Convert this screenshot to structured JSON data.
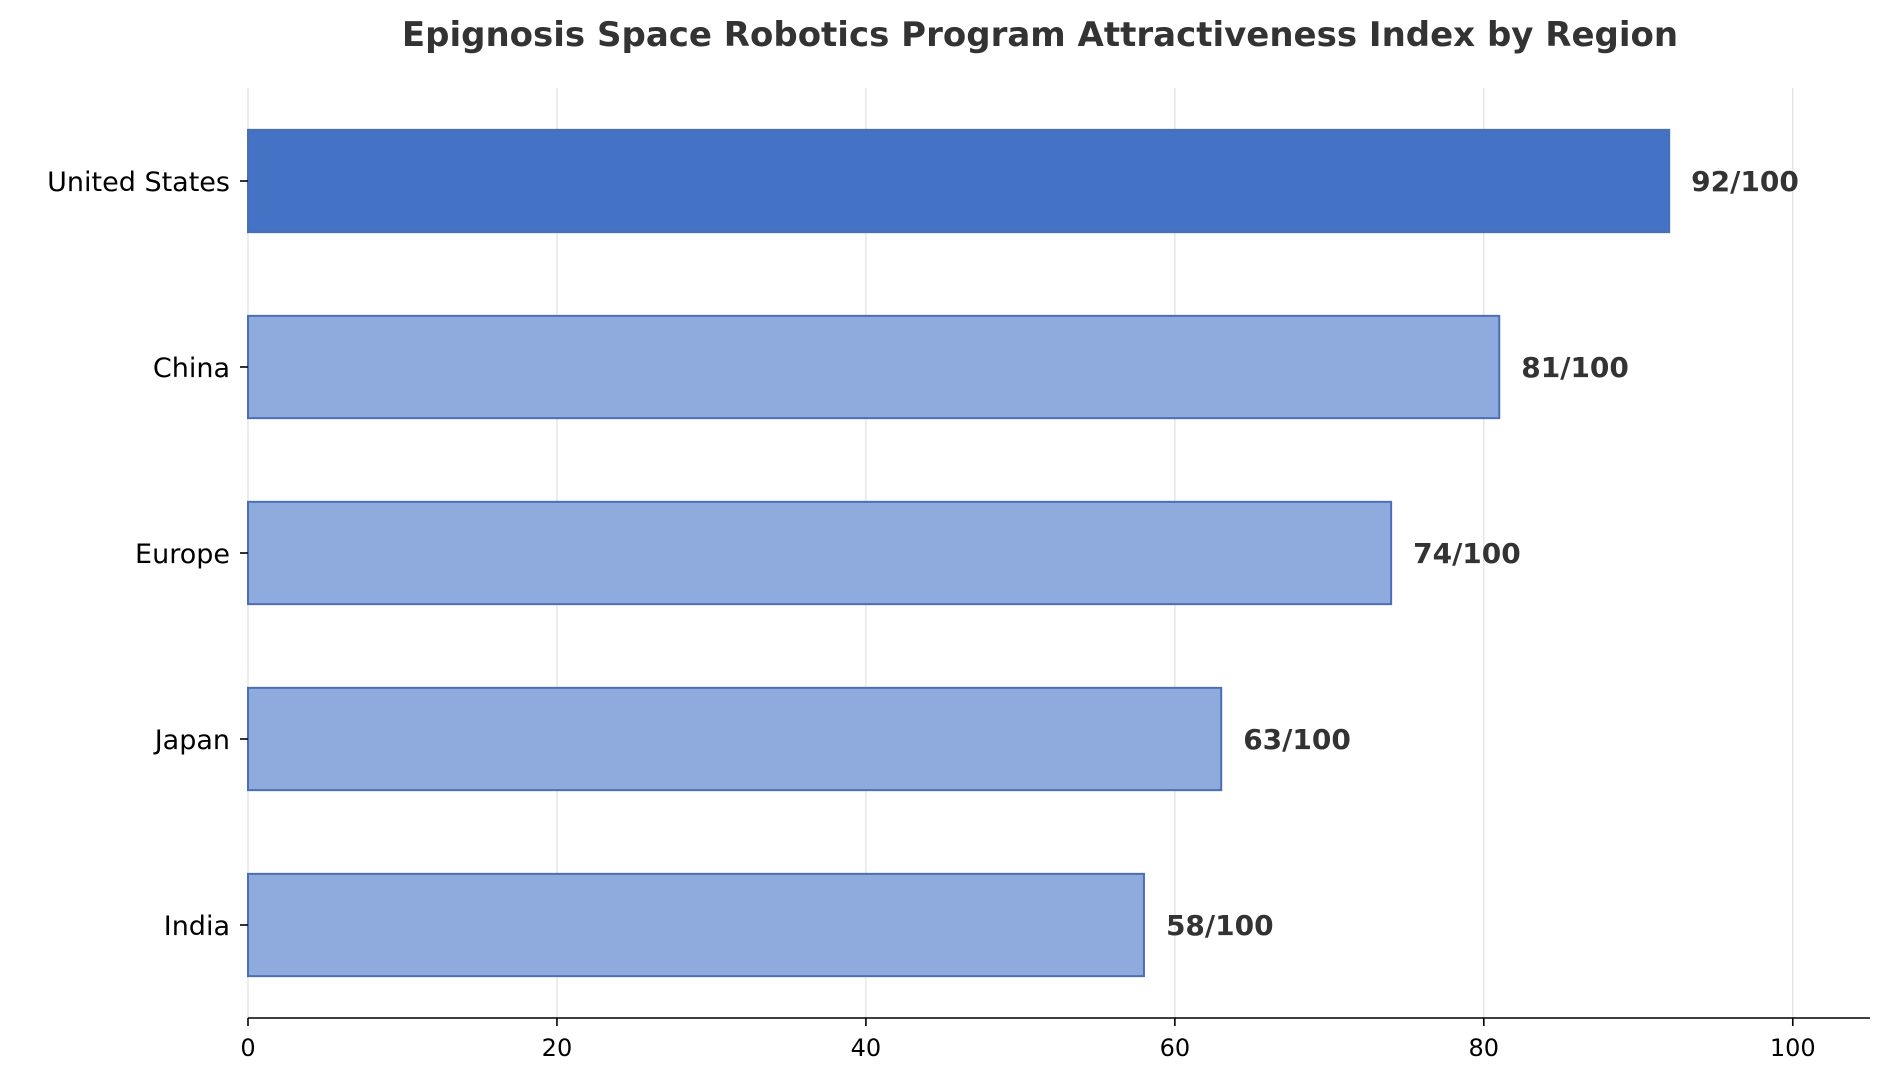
{
  "chart_data": {
    "type": "bar",
    "orientation": "horizontal",
    "title": "Epignosis Space Robotics Program Attractiveness Index by Region",
    "xlabel": "",
    "ylabel": "",
    "categories": [
      "United States",
      "China",
      "Europe",
      "Japan",
      "India"
    ],
    "values": [
      92,
      81,
      74,
      63,
      58
    ],
    "value_labels": [
      "92/100",
      "81/100",
      "74/100",
      "63/100",
      "58/100"
    ],
    "xlim": [
      0,
      105
    ],
    "xticks": [
      0,
      20,
      40,
      60,
      80,
      100
    ],
    "grid": "vertical",
    "highlight_category": "United States",
    "colors": {
      "highlight": "#4472c4",
      "bar": "#8faadc",
      "bar_edge": "#4a6fb5"
    }
  }
}
